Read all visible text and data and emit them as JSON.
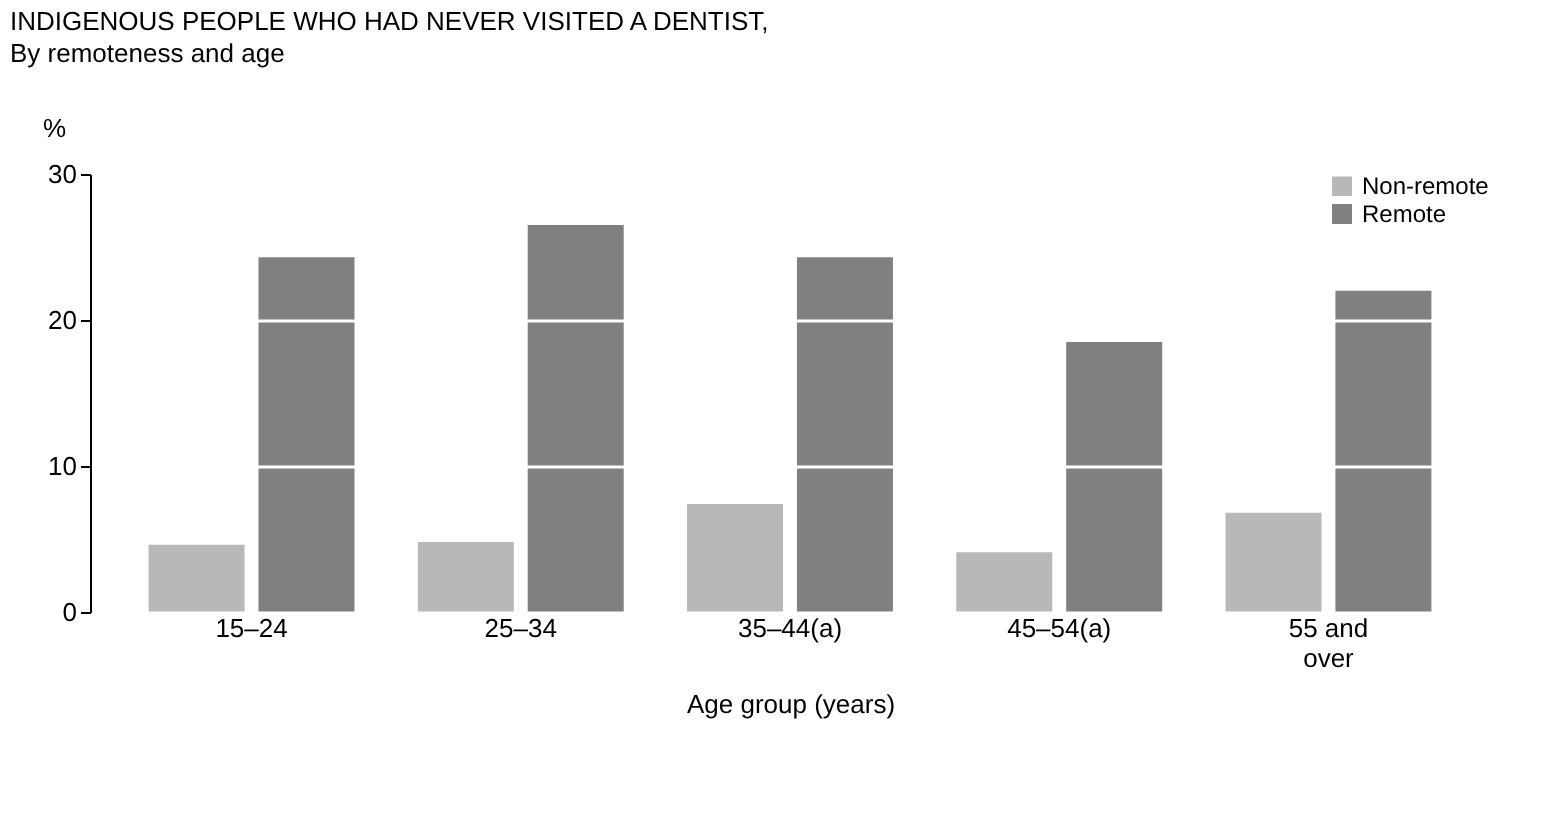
{
  "chart_data": {
    "type": "bar",
    "title": "INDIGENOUS PEOPLE WHO HAD NEVER VISITED A DENTIST,",
    "subtitle": "By remoteness and age",
    "xlabel": "Age group (years)",
    "ylabel": "%",
    "categories": [
      "15–24",
      "25–34",
      "35–44(a)",
      "45–54(a)",
      "55 and over"
    ],
    "series": [
      {
        "name": "Non-remote",
        "color": "#b8b8b8",
        "values": [
          4.6,
          4.8,
          7.4,
          4.1,
          6.8
        ]
      },
      {
        "name": "Remote",
        "color": "#808080",
        "values": [
          24.3,
          26.5,
          24.3,
          18.5,
          22.0
        ]
      }
    ],
    "ylim": [
      0,
      30
    ],
    "yticks": [
      0,
      10,
      20,
      30
    ],
    "grid": "y",
    "legend": "top right"
  }
}
